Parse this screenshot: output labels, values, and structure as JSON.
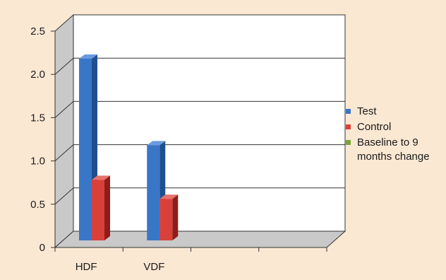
{
  "chart_data": {
    "type": "bar",
    "title": "",
    "xlabel": "",
    "ylabel": "",
    "ylim": [
      0,
      2.5
    ],
    "yticks": [
      "0",
      "0.5",
      "1.0",
      "1.5",
      "2.0",
      "2.5"
    ],
    "categories": [
      "HDF",
      "VDF",
      "",
      ""
    ],
    "series": [
      {
        "name": "Test",
        "values": [
          2.1,
          1.1,
          null,
          null
        ]
      },
      {
        "name": "Control",
        "values": [
          0.7,
          0.48,
          null,
          null
        ]
      },
      {
        "name": "Baseline to 9 months change",
        "values": [
          null,
          null,
          null,
          null
        ]
      }
    ],
    "legend_lines": [
      [
        "Test"
      ],
      [
        "Control"
      ],
      [
        "Baseline to 9",
        "months change"
      ]
    ],
    "legend_position": "right",
    "grid": true,
    "style": "3d",
    "colors": {
      "background": "#fbe8d3",
      "plot_wall": "#ffffff",
      "side_wall": "#c9c9c9",
      "floor": "#c9c9c9",
      "test_front": "#3a76c6",
      "test_side": "#1f4f8f",
      "test_top": "#6a9be0",
      "control_front": "#d9403a",
      "control_side": "#8e1d1a",
      "control_top": "#e8716c",
      "baseline": "#7aa33a"
    }
  }
}
